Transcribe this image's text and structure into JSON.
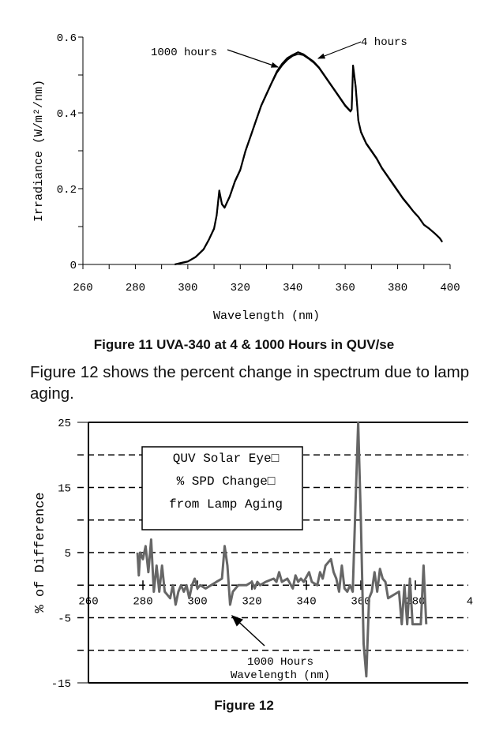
{
  "figure11_caption": "Figure 11 UVA-340 at 4 & 1000 Hours in QUV/se",
  "paragraph": "Figure 12 shows the percent change in spectrum due to lamp aging.",
  "figure12_caption": "Figure 12",
  "chart_data": [
    {
      "type": "line",
      "xlabel": "Wavelength (nm)",
      "ylabel": "Irradiance (W/m²/nm)",
      "xlim": [
        260,
        400
      ],
      "ylim": [
        0,
        0.6
      ],
      "xticks": [
        "260",
        "280",
        "300",
        "320",
        "340",
        "360",
        "380",
        "400"
      ],
      "yticks": [
        "0",
        "0.2",
        "0.4",
        "0.6"
      ],
      "grid": false,
      "annotations": [
        "1000 hours",
        "4 hours"
      ],
      "series": [
        {
          "name": "4 hours",
          "x": [
            295,
            298,
            300,
            303,
            306,
            308,
            310,
            311,
            312,
            313,
            314,
            316,
            318,
            320,
            322,
            324,
            326,
            328,
            330,
            332,
            334,
            336,
            338,
            340,
            342,
            344,
            346,
            348,
            350,
            352,
            354,
            356,
            358,
            360,
            362,
            362.5,
            363,
            364,
            365,
            366,
            368,
            370,
            372,
            374,
            376,
            378,
            380,
            382,
            384,
            386,
            388,
            390,
            392,
            394,
            396,
            397
          ],
          "y": [
            0,
            0.005,
            0.008,
            0.02,
            0.04,
            0.065,
            0.095,
            0.13,
            0.195,
            0.16,
            0.15,
            0.18,
            0.22,
            0.25,
            0.3,
            0.34,
            0.38,
            0.42,
            0.45,
            0.48,
            0.51,
            0.53,
            0.545,
            0.553,
            0.56,
            0.555,
            0.545,
            0.535,
            0.52,
            0.5,
            0.48,
            0.46,
            0.44,
            0.42,
            0.405,
            0.41,
            0.525,
            0.47,
            0.38,
            0.35,
            0.32,
            0.3,
            0.28,
            0.255,
            0.235,
            0.215,
            0.195,
            0.175,
            0.158,
            0.14,
            0.125,
            0.105,
            0.095,
            0.083,
            0.07,
            0.06
          ]
        },
        {
          "name": "1000 hours",
          "x": [
            295,
            298,
            300,
            303,
            306,
            308,
            310,
            311,
            312,
            313,
            314,
            316,
            318,
            320,
            322,
            324,
            326,
            328,
            330,
            332,
            334,
            336,
            338,
            340,
            342,
            344,
            346,
            348,
            350,
            352,
            354,
            356,
            358,
            360,
            362,
            362.5,
            363,
            364,
            365,
            366,
            368,
            370,
            372,
            374,
            376,
            378,
            380,
            382,
            384,
            386,
            388,
            390,
            392,
            394,
            396,
            397
          ],
          "y": [
            0,
            0.004,
            0.007,
            0.019,
            0.039,
            0.064,
            0.093,
            0.128,
            0.19,
            0.158,
            0.149,
            0.178,
            0.218,
            0.248,
            0.298,
            0.338,
            0.378,
            0.418,
            0.448,
            0.478,
            0.506,
            0.525,
            0.54,
            0.55,
            0.555,
            0.552,
            0.543,
            0.532,
            0.518,
            0.498,
            0.478,
            0.458,
            0.438,
            0.418,
            0.403,
            0.408,
            0.52,
            0.465,
            0.378,
            0.348,
            0.318,
            0.298,
            0.278,
            0.253,
            0.233,
            0.213,
            0.193,
            0.173,
            0.156,
            0.139,
            0.124,
            0.104,
            0.094,
            0.082,
            0.069,
            0.059
          ]
        }
      ]
    },
    {
      "type": "line",
      "xlabel": "Wavelength (nm)",
      "ylabel": "% of Difference",
      "xlim": [
        260,
        400
      ],
      "ylim": [
        -15,
        25
      ],
      "xticks": [
        "260",
        "280",
        "300",
        "320",
        "340",
        "360",
        "380",
        "4"
      ],
      "yticks": [
        "25",
        "15",
        "5",
        "-5",
        "-15"
      ],
      "grid": true,
      "legend_box": [
        "QUV Solar Eye□",
        "% SPD Change□",
        "from Lamp Aging"
      ],
      "annotation": "1000 Hours",
      "color": "#666666",
      "series": [
        {
          "x": [
            278,
            278.5,
            279,
            280,
            281,
            282,
            283,
            284,
            285,
            286,
            287,
            288,
            290,
            291,
            292,
            293,
            294,
            295,
            296,
            297,
            298,
            299,
            300,
            301,
            303,
            305,
            307,
            309,
            310,
            311,
            312,
            313,
            314,
            315,
            318,
            320,
            321,
            322,
            323,
            325,
            328,
            329,
            330,
            331,
            333,
            335,
            336,
            337,
            338,
            339,
            341,
            342,
            344,
            345,
            346,
            347,
            348,
            349,
            350,
            351,
            352,
            353,
            354,
            355,
            356,
            357,
            358,
            359,
            360,
            361,
            362,
            363,
            364,
            365,
            366,
            367,
            368,
            369,
            370,
            372,
            374,
            375,
            376,
            377,
            378,
            379,
            380,
            382,
            383,
            384
          ],
          "y": [
            5,
            1.5,
            5,
            4,
            6,
            2,
            7,
            -1,
            3,
            -1,
            3,
            -1,
            -2,
            0,
            -3,
            -1,
            0,
            -1,
            0,
            -2,
            0,
            1,
            -0.5,
            0,
            -0.5,
            0,
            0.5,
            1,
            6,
            3,
            -3,
            -1,
            -0.5,
            0,
            0,
            0.5,
            -0.5,
            0.5,
            0,
            0.5,
            1,
            0.5,
            2,
            0.5,
            1,
            -0.5,
            1.5,
            0.5,
            1,
            0.5,
            2,
            0.5,
            0,
            2,
            1,
            3,
            3.5,
            4,
            2,
            1,
            -1,
            3,
            -0.5,
            -1,
            0,
            -1,
            12,
            25,
            10,
            -9,
            -14,
            -2,
            -1,
            2,
            -1,
            2.5,
            1,
            0.5,
            -2,
            -1.5,
            -1,
            -6,
            0,
            -6,
            1,
            -6,
            -6,
            -6,
            3,
            -6
          ]
        }
      ]
    }
  ]
}
